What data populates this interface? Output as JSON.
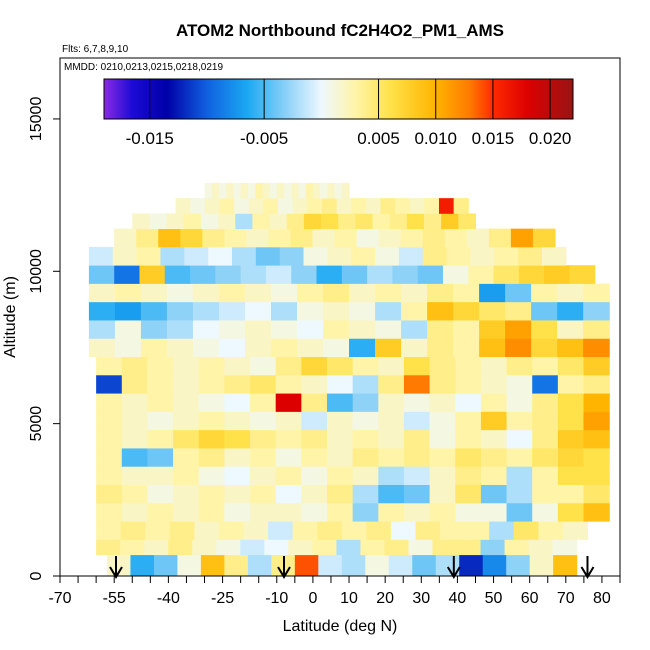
{
  "chart_data": {
    "type": "heatmap",
    "title": "ATOM2 Northbound fC2H4O2_PM1_AMS",
    "flights_note": "Flts: 6,7,8,9,10",
    "dates_note": "MMDD: 0210,0213,0215,0218,0219",
    "xlabel": "Latitude (deg N)",
    "ylabel": "Altitude (m)",
    "xlim": [
      -70,
      85
    ],
    "ylim": [
      0,
      17000
    ],
    "x_ticks": [
      -70,
      -65,
      -60,
      -55,
      -50,
      -45,
      -40,
      -35,
      -30,
      -25,
      -20,
      -15,
      -10,
      -5,
      0,
      5,
      10,
      15,
      20,
      25,
      30,
      35,
      40,
      45,
      50,
      55,
      60,
      65,
      70,
      75,
      80,
      85
    ],
    "x_tick_labels": [
      "-70",
      "-55",
      "-40",
      "-25",
      "-10",
      "0",
      "10",
      "20",
      "30",
      "40",
      "50",
      "60",
      "70",
      "80"
    ],
    "x_tick_label_values": [
      -70,
      -55,
      -40,
      -25,
      -10,
      0,
      10,
      20,
      30,
      40,
      50,
      60,
      70,
      80
    ],
    "y_tick_values": [
      0,
      5000,
      10000,
      15000
    ],
    "y_tick_labels": [
      "0",
      "5000",
      "10000",
      "15000"
    ],
    "colorbar": {
      "range": [
        -0.019,
        0.022
      ],
      "tick_labels": [
        "-0.015",
        "-0.005",
        "0.005",
        "0.010",
        "0.015",
        "0.020"
      ],
      "tick_values": [
        -0.015,
        -0.005,
        0.005,
        0.01,
        0.015,
        0.02
      ],
      "stops": [
        {
          "v": -0.019,
          "c": "#8a2be2"
        },
        {
          "v": -0.0165,
          "c": "#1c0ad6"
        },
        {
          "v": -0.0135,
          "c": "#0000a8"
        },
        {
          "v": -0.01,
          "c": "#1060e0"
        },
        {
          "v": -0.0065,
          "c": "#1aa8f2"
        },
        {
          "v": -0.003,
          "c": "#8ed2f8"
        },
        {
          "v": 0.0,
          "c": "#eef8ff"
        },
        {
          "v": 0.003,
          "c": "#fff4a8"
        },
        {
          "v": 0.006,
          "c": "#ffe24a"
        },
        {
          "v": 0.01,
          "c": "#ffb400"
        },
        {
          "v": 0.013,
          "c": "#ff7a00"
        },
        {
          "v": 0.015,
          "c": "#ff2a00"
        },
        {
          "v": 0.018,
          "c": "#dc0000"
        },
        {
          "v": 0.022,
          "c": "#9a1414"
        }
      ]
    },
    "profile_latitudes": [
      -54.5,
      -8,
      39,
      76
    ],
    "series": [
      {
        "name": "level_1",
        "alt": [
          0,
          700
        ],
        "lat": [
          -57,
          73
        ],
        "v": [
          0.002,
          -0.006,
          -0.004,
          0.001,
          0.009,
          0.004,
          -0.002,
          0.004,
          0.014,
          -0.001,
          -0.002,
          0.001,
          -0.001,
          -0.004,
          -0.002,
          -0.012,
          -0.008,
          -0.003,
          0.002,
          0.009
        ]
      },
      {
        "name": "level_2",
        "alt": [
          700,
          1200
        ],
        "lat": [
          -60,
          73
        ],
        "v": [
          0.004,
          0.003,
          0.002,
          0.004,
          0.002,
          0.001,
          -0.001,
          0.0,
          0.002,
          0.003,
          -0.002,
          0.003,
          0.004,
          0.001,
          0.004,
          0.004,
          -0.003,
          0.003,
          0.002,
          0.001
        ]
      },
      {
        "name": "level_3",
        "alt": [
          1200,
          1800
        ],
        "lat": [
          -60,
          76
        ],
        "v": [
          0.003,
          0.004,
          0.003,
          0.004,
          0.002,
          0.003,
          0.002,
          -0.001,
          0.003,
          0.004,
          0.003,
          0.004,
          0.0,
          0.004,
          0.003,
          0.003,
          -0.002,
          0.005,
          0.003,
          0.002
        ]
      },
      {
        "name": "level_4",
        "alt": [
          1800,
          2400
        ],
        "lat": [
          -60,
          82
        ],
        "v": [
          0.003,
          0.002,
          0.003,
          0.002,
          0.003,
          0.001,
          0.002,
          0.002,
          0.001,
          0.003,
          -0.003,
          0.003,
          0.002,
          0.003,
          0.001,
          0.001,
          -0.004,
          0.001,
          0.006,
          0.009
        ]
      },
      {
        "name": "level_5",
        "alt": [
          2400,
          3000
        ],
        "lat": [
          -60,
          82
        ],
        "v": [
          0.004,
          0.003,
          0.001,
          0.002,
          0.003,
          0.002,
          0.003,
          0.0,
          0.002,
          0.004,
          -0.002,
          -0.005,
          -0.004,
          0.002,
          0.005,
          -0.004,
          -0.002,
          0.003,
          0.003,
          0.005
        ]
      },
      {
        "name": "level_6",
        "alt": [
          3000,
          3600
        ],
        "lat": [
          -60,
          82
        ],
        "v": [
          0.003,
          0.002,
          0.002,
          0.003,
          0.001,
          0.0,
          0.002,
          0.003,
          0.001,
          0.003,
          0.002,
          -0.002,
          -0.001,
          0.002,
          0.004,
          0.003,
          -0.002,
          0.003,
          0.006,
          0.006
        ]
      },
      {
        "name": "level_7",
        "alt": [
          3600,
          4200
        ],
        "lat": [
          -60,
          82
        ],
        "v": [
          0.003,
          -0.005,
          -0.004,
          0.003,
          0.004,
          0.002,
          0.003,
          0.001,
          0.003,
          0.002,
          0.004,
          0.003,
          0.004,
          0.003,
          0.005,
          0.004,
          0.003,
          0.005,
          0.007,
          0.006
        ]
      },
      {
        "name": "level_8",
        "alt": [
          4200,
          4800
        ],
        "lat": [
          -60,
          82
        ],
        "v": [
          0.003,
          0.002,
          0.003,
          0.005,
          0.007,
          0.006,
          0.004,
          0.003,
          0.004,
          0.002,
          0.003,
          0.002,
          0.004,
          0.001,
          0.003,
          0.002,
          0.0,
          0.004,
          0.008,
          0.009
        ]
      },
      {
        "name": "level_9",
        "alt": [
          4800,
          5400
        ],
        "lat": [
          -60,
          82
        ],
        "v": [
          0.003,
          0.002,
          0.001,
          0.002,
          0.003,
          0.002,
          0.001,
          0.002,
          -0.001,
          0.002,
          0.001,
          0.002,
          -0.001,
          0.001,
          0.003,
          0.008,
          0.003,
          0.004,
          0.006,
          0.011
        ]
      },
      {
        "name": "level_10",
        "alt": [
          5400,
          6000
        ],
        "lat": [
          -60,
          82
        ],
        "v": [
          0.003,
          0.002,
          0.003,
          0.002,
          0.001,
          0.0,
          0.003,
          0.018,
          0.004,
          -0.005,
          -0.003,
          0.002,
          0.001,
          0.002,
          0.0,
          0.003,
          0.001,
          0.004,
          0.006,
          0.01
        ]
      },
      {
        "name": "level_11",
        "alt": [
          6000,
          6600
        ],
        "lat": [
          -60,
          82
        ],
        "v": [
          -0.011,
          0.004,
          0.003,
          0.002,
          0.003,
          0.004,
          0.005,
          0.003,
          0.002,
          0.0,
          -0.002,
          0.004,
          0.013,
          0.004,
          0.003,
          0.002,
          0.001,
          -0.009,
          0.003,
          0.004
        ]
      },
      {
        "name": "level_12",
        "alt": [
          6600,
          7200
        ],
        "lat": [
          -60,
          82
        ],
        "v": [
          0.003,
          0.004,
          0.003,
          0.002,
          0.003,
          0.002,
          0.001,
          0.004,
          0.007,
          0.005,
          0.003,
          0.002,
          0.006,
          0.004,
          0.003,
          0.002,
          0.004,
          0.003,
          0.005,
          0.008
        ]
      },
      {
        "name": "level_13",
        "alt": [
          7200,
          7800
        ],
        "lat": [
          -62,
          82
        ],
        "v": [
          0.002,
          0.001,
          0.003,
          0.002,
          0.001,
          0.0,
          0.002,
          0.003,
          0.002,
          0.001,
          -0.006,
          0.008,
          0.002,
          0.004,
          0.003,
          0.009,
          0.012,
          0.007,
          0.009,
          0.012
        ]
      },
      {
        "name": "level_14",
        "alt": [
          7800,
          8400
        ],
        "lat": [
          -62,
          82
        ],
        "v": [
          -0.002,
          0.001,
          -0.003,
          -0.002,
          0.0,
          0.001,
          0.002,
          0.001,
          0.0,
          0.003,
          0.002,
          0.001,
          -0.002,
          0.004,
          0.003,
          0.008,
          0.011,
          0.006,
          0.002,
          0.004
        ]
      },
      {
        "name": "level_15",
        "alt": [
          8400,
          9000
        ],
        "lat": [
          -62,
          82
        ],
        "v": [
          -0.006,
          -0.007,
          -0.005,
          -0.003,
          -0.002,
          -0.001,
          0.0,
          -0.002,
          0.001,
          0.002,
          0.001,
          -0.002,
          0.003,
          0.009,
          0.007,
          0.005,
          0.004,
          -0.004,
          -0.006,
          -0.003
        ]
      },
      {
        "name": "level_16",
        "alt": [
          9000,
          9600
        ],
        "lat": [
          -62,
          82
        ],
        "v": [
          0.002,
          0.003,
          0.002,
          0.001,
          0.002,
          0.003,
          0.002,
          0.001,
          0.003,
          0.004,
          0.002,
          0.003,
          0.002,
          0.004,
          0.003,
          -0.007,
          -0.004,
          0.003,
          0.002,
          0.003
        ]
      },
      {
        "name": "level_17",
        "alt": [
          9600,
          10200
        ],
        "lat": [
          -62,
          78
        ],
        "v": [
          -0.004,
          -0.009,
          0.008,
          -0.005,
          -0.004,
          -0.003,
          -0.002,
          -0.001,
          -0.003,
          -0.006,
          -0.004,
          -0.002,
          -0.003,
          -0.004,
          0.001,
          0.003,
          0.005,
          0.007,
          0.008,
          0.007
        ]
      },
      {
        "name": "level_18",
        "alt": [
          10200,
          10800
        ],
        "lat": [
          -62,
          70
        ],
        "v": [
          -0.001,
          0.002,
          0.003,
          -0.002,
          -0.001,
          0.0,
          -0.002,
          -0.004,
          -0.003,
          0.001,
          0.002,
          0.003,
          0.001,
          -0.001,
          0.004,
          0.003,
          0.002,
          0.003,
          0.004,
          0.002
        ]
      },
      {
        "name": "level_19",
        "alt": [
          10800,
          11400
        ],
        "lat": [
          -55,
          67
        ],
        "v": [
          0.002,
          0.004,
          0.009,
          0.007,
          0.004,
          0.003,
          0.002,
          0.003,
          0.004,
          0.002,
          0.003,
          0.001,
          0.002,
          0.003,
          0.004,
          0.003,
          0.002,
          0.004,
          0.011,
          0.007
        ]
      },
      {
        "name": "level_20",
        "alt": [
          11400,
          11900
        ],
        "lat": [
          -50,
          45
        ],
        "v": [
          0.002,
          0.001,
          0.002,
          0.003,
          0.001,
          0.002,
          -0.002,
          0.003,
          0.002,
          0.004,
          0.007,
          0.006,
          0.004,
          0.005,
          0.003,
          0.004,
          0.006,
          0.004,
          0.008,
          0.005
        ]
      },
      {
        "name": "level_21",
        "alt": [
          11900,
          12400
        ],
        "lat": [
          -38,
          43
        ],
        "v": [
          0.002,
          0.001,
          0.002,
          0.003,
          0.001,
          0.002,
          0.003,
          0.001,
          0.002,
          0.003,
          0.004,
          0.002,
          0.003,
          0.002,
          0.004,
          0.003,
          0.002,
          0.003,
          0.016,
          0.004
        ]
      },
      {
        "name": "level_22",
        "alt": [
          12400,
          12900
        ],
        "lat": [
          -30,
          10
        ],
        "v": [
          0.001,
          0.002,
          0.001,
          0.002,
          0.001,
          0.002,
          0.001,
          0.003,
          0.002,
          0.001,
          0.002,
          0.001,
          0.002,
          0.001,
          0.003,
          0.002,
          0.001,
          0.002,
          0.001,
          0.002
        ]
      }
    ]
  }
}
